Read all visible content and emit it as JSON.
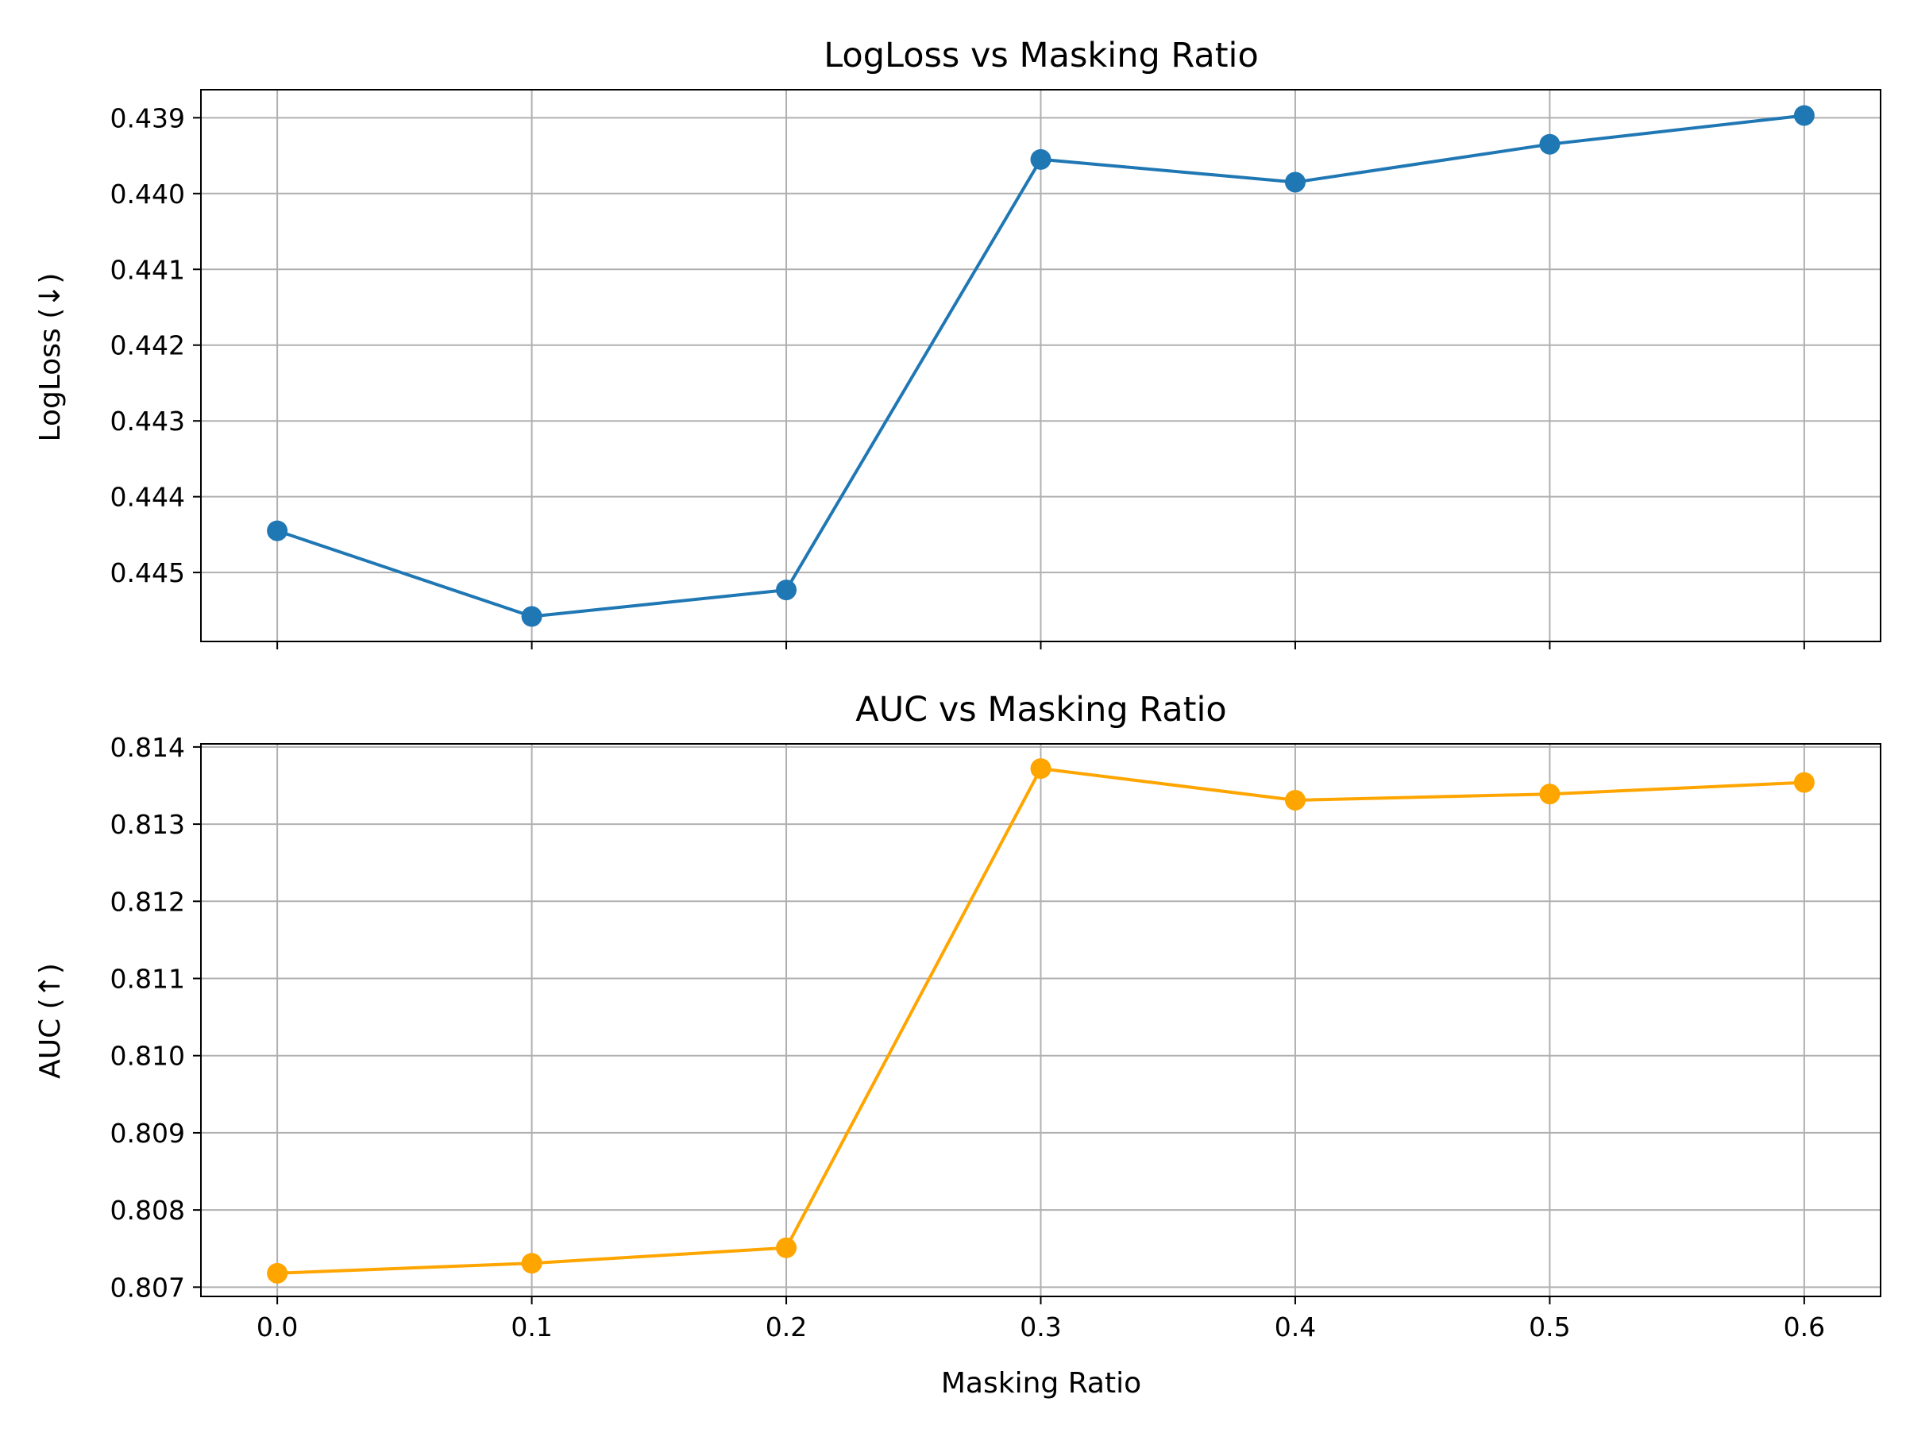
{
  "chart_data": [
    {
      "type": "line",
      "title": "LogLoss vs Masking Ratio",
      "xlabel": "",
      "ylabel": "LogLoss (↓)",
      "x": [
        0.0,
        0.1,
        0.2,
        0.3,
        0.4,
        0.5,
        0.6
      ],
      "x_tick_labels": [
        "0.0",
        "0.1",
        "0.2",
        "0.3",
        "0.4",
        "0.5",
        "0.6"
      ],
      "show_x_tick_labels": false,
      "y_ticks": [
        0.439,
        0.44,
        0.441,
        0.442,
        0.443,
        0.444,
        0.445
      ],
      "y_tick_labels": [
        "0.439",
        "0.440",
        "0.441",
        "0.442",
        "0.443",
        "0.444",
        "0.445"
      ],
      "ylim": [
        0.43863,
        0.44591
      ],
      "y_inverted": true,
      "xlim": [
        -0.03,
        0.63
      ],
      "grid": true,
      "color": "#1f77b4",
      "series": [
        {
          "values": [
            0.44445,
            0.44558,
            0.44523,
            0.43955,
            0.43985,
            0.43935,
            0.43897
          ]
        }
      ]
    },
    {
      "type": "line",
      "title": "AUC vs Masking Ratio",
      "xlabel": "Masking Ratio",
      "ylabel": "AUC (↑)",
      "x": [
        0.0,
        0.1,
        0.2,
        0.3,
        0.4,
        0.5,
        0.6
      ],
      "x_tick_labels": [
        "0.0",
        "0.1",
        "0.2",
        "0.3",
        "0.4",
        "0.5",
        "0.6"
      ],
      "show_x_tick_labels": true,
      "y_ticks": [
        0.807,
        0.808,
        0.809,
        0.81,
        0.811,
        0.812,
        0.813,
        0.814
      ],
      "y_tick_labels": [
        "0.807",
        "0.808",
        "0.809",
        "0.810",
        "0.811",
        "0.812",
        "0.813",
        "0.814"
      ],
      "ylim": [
        0.80688,
        0.81404
      ],
      "y_inverted": false,
      "xlim": [
        -0.03,
        0.63
      ],
      "grid": true,
      "color": "#ffa500",
      "series": [
        {
          "values": [
            0.80718,
            0.80731,
            0.80751,
            0.81372,
            0.81331,
            0.81339,
            0.81354
          ]
        }
      ]
    }
  ]
}
